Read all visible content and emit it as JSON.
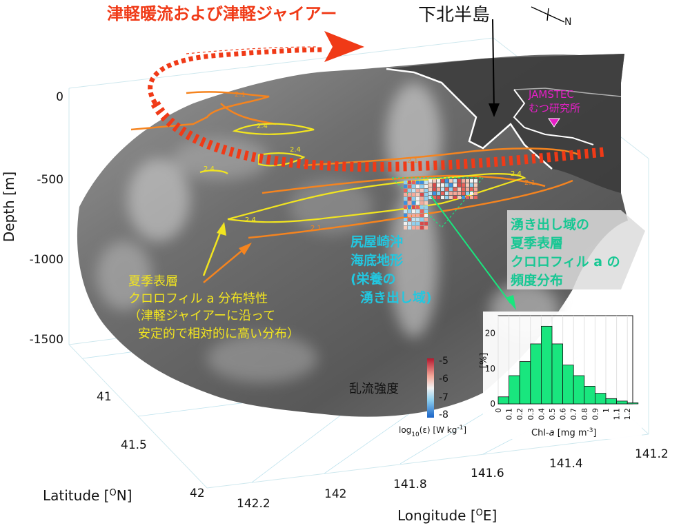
{
  "title": "津軽暖流および津軽ジャイアー",
  "peninsula_label": "下北半島",
  "north_label": "N",
  "jamstec": {
    "line1": "JAMSTEC",
    "line2": "むつ研究所"
  },
  "axes": {
    "depth_label": "Depth [m]",
    "depth_ticks": [
      "0",
      "-500",
      "-1000",
      "-1500"
    ],
    "latitude_label": "Latitude [°N]",
    "latitude_ticks": [
      "41",
      "41.5",
      "42"
    ],
    "longitude_label": "Longitude [°E]",
    "longitude_ticks": [
      "142.2",
      "142",
      "141.8",
      "141.6",
      "141.4",
      "141.2"
    ]
  },
  "contours": {
    "labels_orange": [
      "2.1",
      "2.1",
      "2.1",
      "2.1"
    ],
    "labels_yellow": [
      "2.4",
      "2.4",
      "2.4",
      "2.4",
      "2.4"
    ]
  },
  "annotations": {
    "summer_line1": "夏季表層",
    "summer_line2": "クロロフィル a 分布特性",
    "summer_line3": "（津軽ジャイアーに沿って",
    "summer_line4": "安定的で相対的に高い分布）",
    "shiriya_line1": "尻屋崎沖",
    "shiriya_line2": "海底地形",
    "shiriya_line3": "(栄養の",
    "shiriya_line4": "湧き出し域)",
    "upwelling_line1": "湧き出し域の",
    "upwelling_line2": "夏季表層",
    "upwelling_line3": "クロロフィル a の",
    "upwelling_line4": "頻度分布"
  },
  "turbulence": {
    "label": "乱流強度",
    "ticks": [
      "-5",
      "-6",
      "-7",
      "-8"
    ],
    "unit": "log10(ε) [W kg-1]"
  },
  "colors": {
    "title_red": "#f03a17",
    "contour_orange": "#f5841f",
    "contour_yellow": "#f2e51f",
    "cyan_text": "#22c7e0",
    "green_text": "#17c793",
    "magenta": "#e81ec8",
    "hist_fill": "#19e67e"
  },
  "chart_data": {
    "type": "bar",
    "ylabel": "[%]",
    "xlabel": "Chl-a [mg m-3]",
    "categories": [
      "0",
      "0.1",
      "0.2",
      "0.3",
      "0.4",
      "0.5",
      "0.6",
      "0.7",
      "0.8",
      "0.9",
      "1",
      "1.1",
      "1.2"
    ],
    "yticks": [
      "0",
      "10",
      "20"
    ],
    "values": [
      2,
      8,
      12,
      17,
      22,
      17,
      11,
      8,
      5,
      3,
      1.5,
      0.8,
      0.3
    ],
    "ylim": [
      0,
      25
    ],
    "xlim": [
      0,
      1.25
    ]
  }
}
